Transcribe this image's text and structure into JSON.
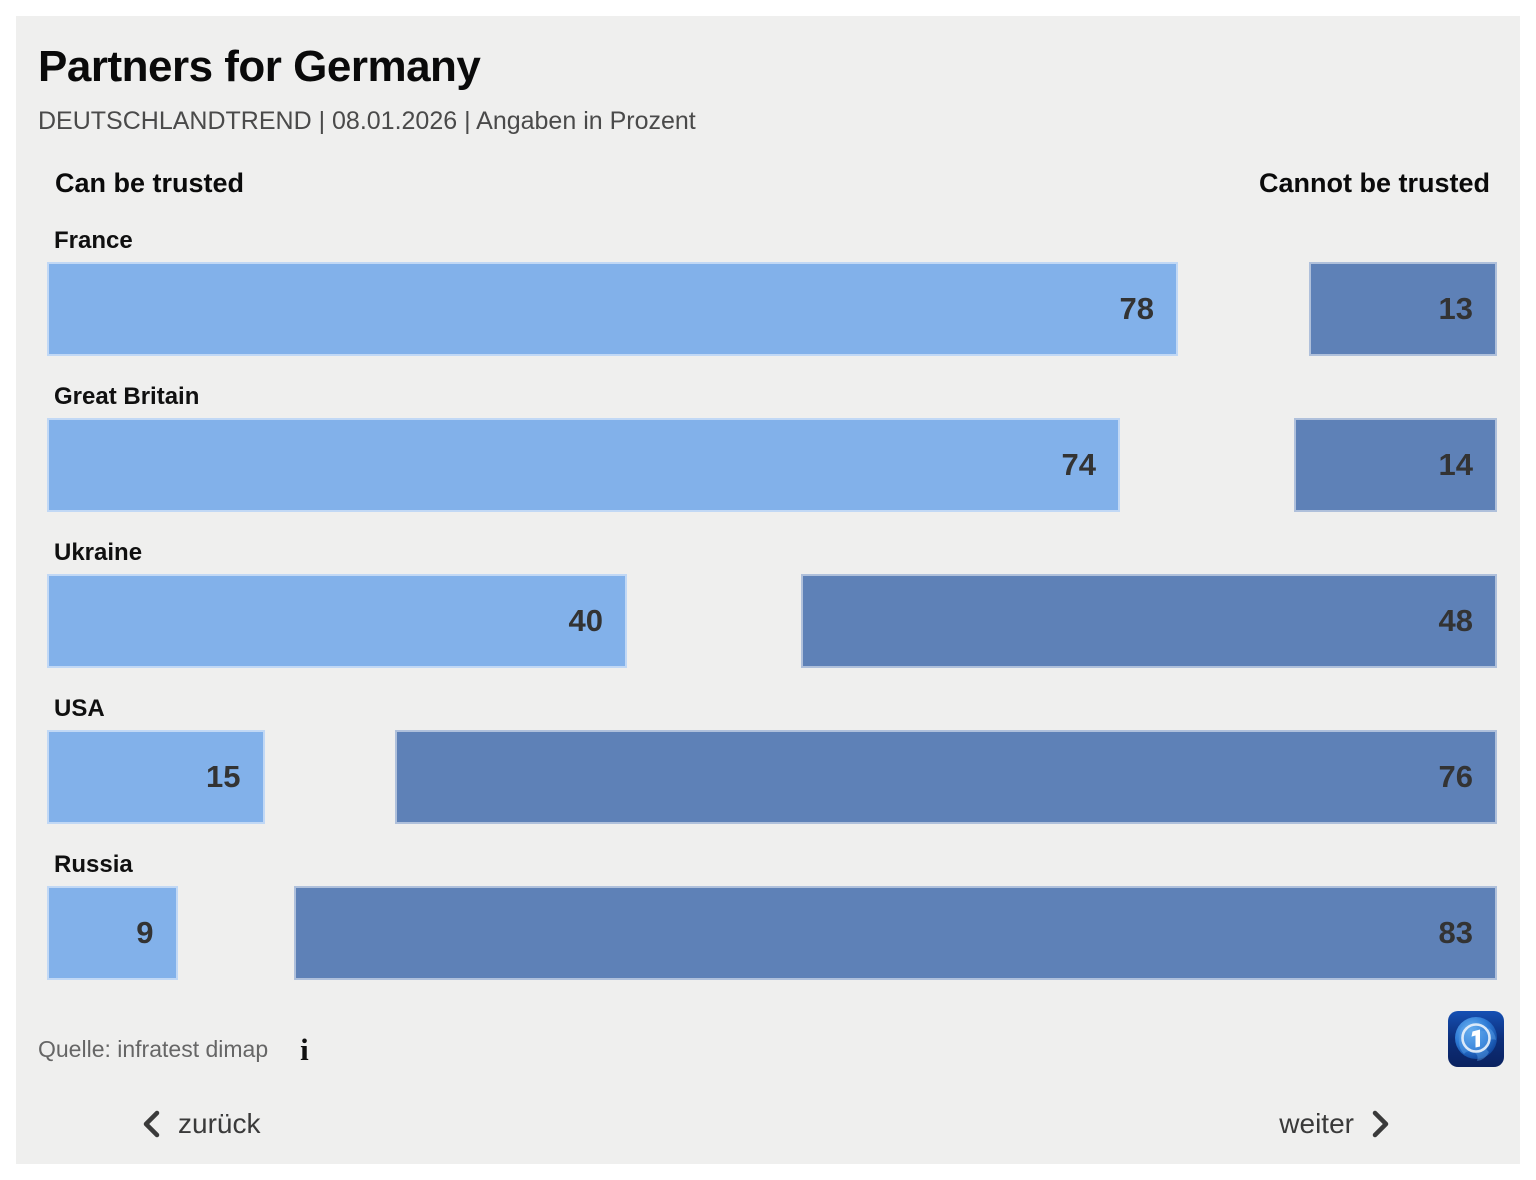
{
  "title": "Partners for Germany",
  "subtitle": "DEUTSCHLANDTREND | 08.01.2026 | Angaben in Prozent",
  "legend": {
    "left": "Can be trusted",
    "right": "Cannot be trusted"
  },
  "chart_data": {
    "type": "bar",
    "orientation": "horizontal",
    "categories": [
      "France",
      "Great Britain",
      "Ukraine",
      "USA",
      "Russia"
    ],
    "series": [
      {
        "name": "Can be trusted",
        "values": [
          78,
          74,
          40,
          15,
          9
        ],
        "color": "#82B1EA",
        "align": "left"
      },
      {
        "name": "Cannot be trusted",
        "values": [
          13,
          14,
          48,
          76,
          83
        ],
        "color": "#5E81B7",
        "align": "right"
      }
    ],
    "value_range": [
      0,
      100
    ],
    "unit": "percent",
    "value_label_color": "#333333"
  },
  "source": {
    "label": "Quelle: infratest dimap",
    "info_icon": "i"
  },
  "nav": {
    "back": "zurück",
    "next": "weiter"
  },
  "logo": {
    "name": "ARD",
    "digit": "1"
  },
  "colors": {
    "panel_background": "#efefee",
    "outer_background": "#ffffff",
    "bar_can": "#82B1EA",
    "bar_cannot": "#5E81B7"
  }
}
